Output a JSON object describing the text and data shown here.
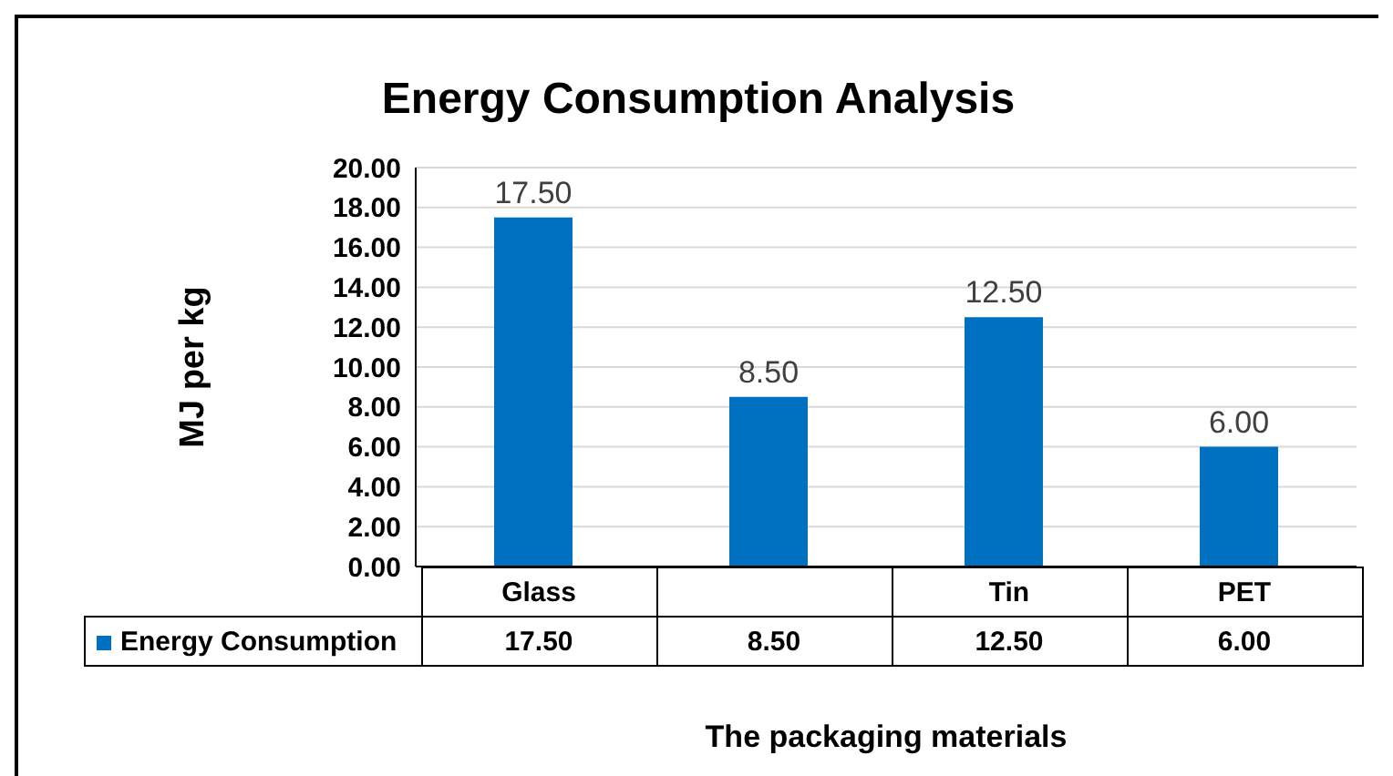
{
  "chart_data": {
    "type": "bar",
    "title": "Energy Consumption Analysis",
    "xlabel": "The packaging materials",
    "ylabel": "MJ per kg",
    "categories": [
      "Glass",
      null,
      "Tin",
      "PET"
    ],
    "series": [
      {
        "name": "Energy Consumption",
        "color": "#0070c0",
        "values": [
          17.5,
          8.5,
          12.5,
          6
        ],
        "value_labels": [
          "17.50",
          "8.50",
          "12.50",
          "6.00"
        ]
      }
    ],
    "ylim": [
      0,
      20
    ],
    "yticks": [
      {
        "value": 0,
        "label": "0.00"
      },
      {
        "value": 2,
        "label": "2.00"
      },
      {
        "value": 4,
        "label": "4.00"
      },
      {
        "value": 6,
        "label": "6.00"
      },
      {
        "value": 8,
        "label": "8.00"
      },
      {
        "value": 10,
        "label": "10.00"
      },
      {
        "value": 12,
        "label": "12.00"
      },
      {
        "value": 14,
        "label": "14.00"
      },
      {
        "value": 16,
        "label": "16.00"
      },
      {
        "value": 18,
        "label": "18.00"
      },
      {
        "value": 20,
        "label": "20.00"
      }
    ],
    "grid": "y",
    "legend": "bottom"
  }
}
